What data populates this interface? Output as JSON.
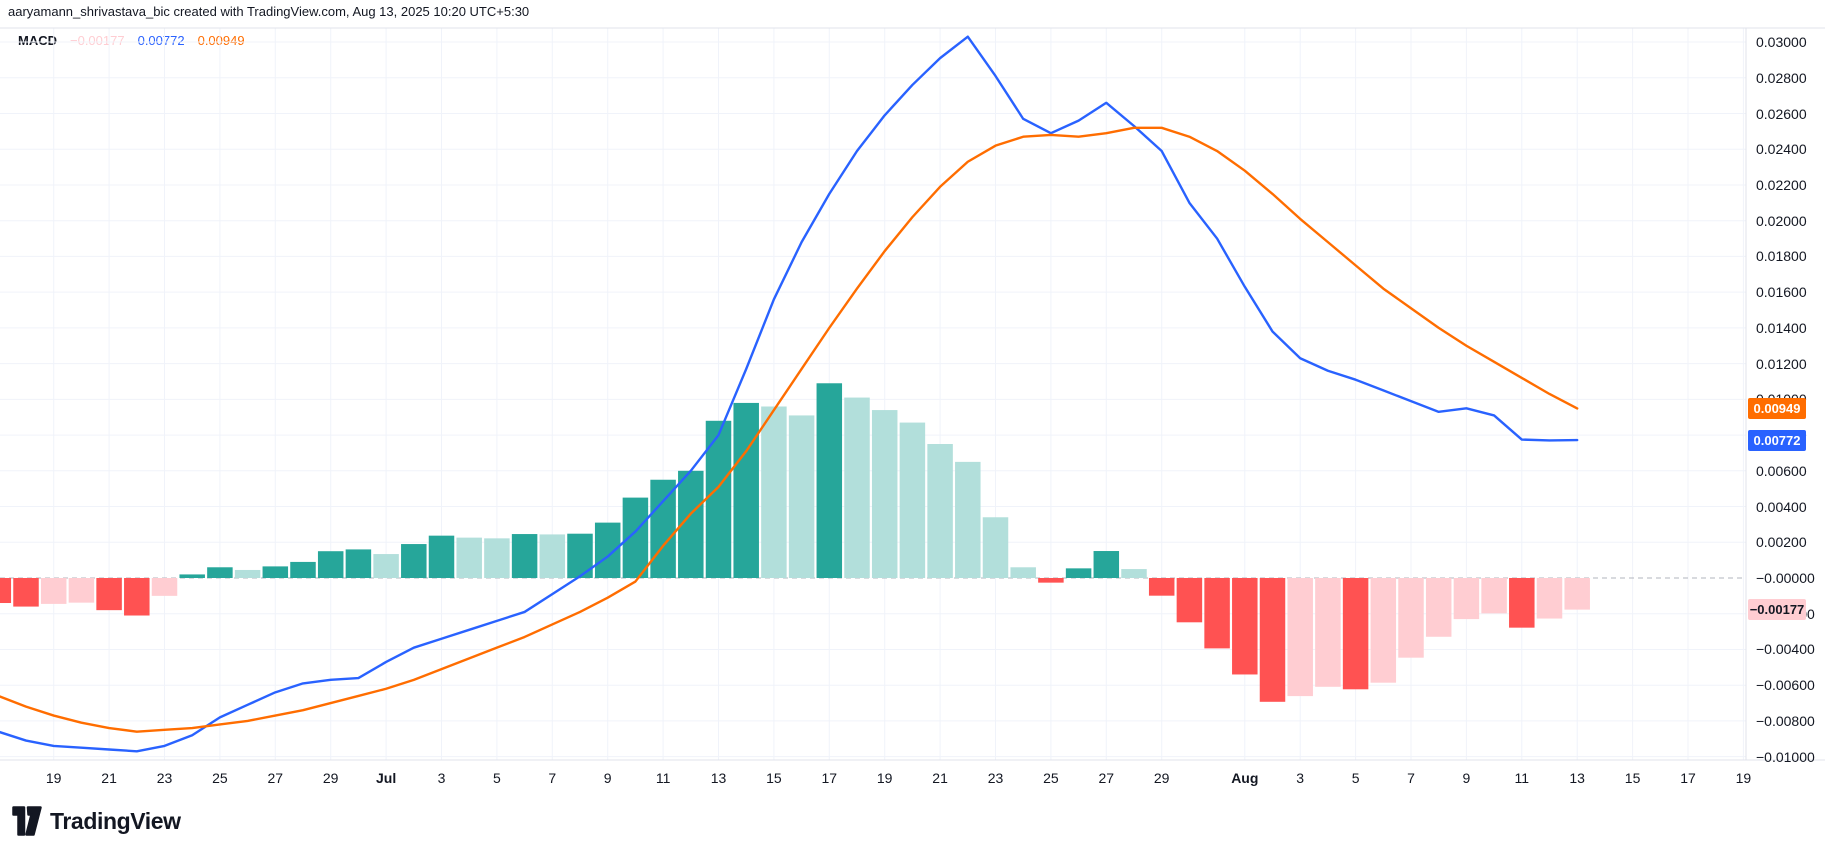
{
  "attribution": "aaryamann_shrivastava_bic created with TradingView.com, Aug 13, 2025 10:20 UTC+5:30",
  "legend": {
    "indicator": "MACD",
    "histogram_value": "−0.00177",
    "macd_value": "0.00772",
    "signal_value": "0.00949"
  },
  "logo": {
    "text": "TradingView"
  },
  "palette": {
    "background": "#ffffff",
    "grid": "#f0f3fa",
    "pane_border": "#e0e3eb",
    "zero_line": "#b2b5be",
    "text": "#131722",
    "macd_line": "#2962ff",
    "signal_line": "#ff6d00",
    "hist_rising_above": "#26a69a",
    "hist_falling_above": "#b2dfdb",
    "hist_falling_below": "#ff5252",
    "hist_rising_below": "#ffcdd2"
  },
  "badges": [
    {
      "name": "signal",
      "label": "0.00949",
      "value": 0.00949,
      "bg": "#ff6d00",
      "fg": "#ffffff"
    },
    {
      "name": "macd",
      "label": "0.00772",
      "value": 0.00772,
      "bg": "#2962ff",
      "fg": "#ffffff"
    },
    {
      "name": "histogram",
      "label": "−0.00177",
      "value": -0.00177,
      "bg": "#ffcdd2",
      "fg": "#131722"
    }
  ],
  "axis": {
    "price_ticks": [
      {
        "label": "0.03000",
        "value": 0.03
      },
      {
        "label": "0.02800",
        "value": 0.028
      },
      {
        "label": "0.02600",
        "value": 0.026
      },
      {
        "label": "0.02400",
        "value": 0.024
      },
      {
        "label": "0.02200",
        "value": 0.022
      },
      {
        "label": "0.02000",
        "value": 0.02
      },
      {
        "label": "0.01800",
        "value": 0.018
      },
      {
        "label": "0.01600",
        "value": 0.016
      },
      {
        "label": "0.01400",
        "value": 0.014
      },
      {
        "label": "0.01200",
        "value": 0.012
      },
      {
        "label": "0.01000",
        "value": 0.01
      },
      {
        "label": "0.00800",
        "value": 0.008
      },
      {
        "label": "0.00600",
        "value": 0.006
      },
      {
        "label": "0.00400",
        "value": 0.004
      },
      {
        "label": "0.00200",
        "value": 0.002
      },
      {
        "label": "−0.00000",
        "value": 0.0
      },
      {
        "label": "−0.00200",
        "value": -0.002
      },
      {
        "label": "−0.00400",
        "value": -0.004
      },
      {
        "label": "−0.00600",
        "value": -0.006
      },
      {
        "label": "−0.00800",
        "value": -0.008
      },
      {
        "label": "−0.01000",
        "value": -0.01
      }
    ],
    "time_ticks": [
      {
        "label": "19",
        "index": 2
      },
      {
        "label": "21",
        "index": 4
      },
      {
        "label": "23",
        "index": 6
      },
      {
        "label": "25",
        "index": 8
      },
      {
        "label": "27",
        "index": 10
      },
      {
        "label": "29",
        "index": 12
      },
      {
        "label": "Jul",
        "index": 14,
        "month": true
      },
      {
        "label": "3",
        "index": 16
      },
      {
        "label": "5",
        "index": 18
      },
      {
        "label": "7",
        "index": 20
      },
      {
        "label": "9",
        "index": 22
      },
      {
        "label": "11",
        "index": 24
      },
      {
        "label": "13",
        "index": 26
      },
      {
        "label": "15",
        "index": 28
      },
      {
        "label": "17",
        "index": 30
      },
      {
        "label": "19",
        "index": 32
      },
      {
        "label": "21",
        "index": 34
      },
      {
        "label": "23",
        "index": 36
      },
      {
        "label": "25",
        "index": 38
      },
      {
        "label": "27",
        "index": 40
      },
      {
        "label": "29",
        "index": 42
      },
      {
        "label": "Aug",
        "index": 45,
        "month": true
      },
      {
        "label": "3",
        "index": 47
      },
      {
        "label": "5",
        "index": 49
      },
      {
        "label": "7",
        "index": 51
      },
      {
        "label": "9",
        "index": 53
      },
      {
        "label": "11",
        "index": 55
      },
      {
        "label": "13",
        "index": 57
      },
      {
        "label": "15",
        "index": 59
      },
      {
        "label": "17",
        "index": 61
      },
      {
        "label": "19",
        "index": 63
      }
    ]
  },
  "chart_data": {
    "type": "bar",
    "subtype": "macd_indicator_panel",
    "title": "MACD",
    "xlabel": "date",
    "ylabel": "MACD value",
    "ylim": [
      -0.01,
      0.03
    ],
    "grid": true,
    "legend_position": "top-left",
    "dates": [
      "Jun 17",
      "Jun 18",
      "Jun 19",
      "Jun 20",
      "Jun 21",
      "Jun 22",
      "Jun 23",
      "Jun 24",
      "Jun 25",
      "Jun 26",
      "Jun 27",
      "Jun 28",
      "Jun 29",
      "Jun 30",
      "Jul 1",
      "Jul 2",
      "Jul 3",
      "Jul 4",
      "Jul 5",
      "Jul 6",
      "Jul 7",
      "Jul 8",
      "Jul 9",
      "Jul 10",
      "Jul 11",
      "Jul 12",
      "Jul 13",
      "Jul 14",
      "Jul 15",
      "Jul 16",
      "Jul 17",
      "Jul 18",
      "Jul 19",
      "Jul 20",
      "Jul 21",
      "Jul 22",
      "Jul 23",
      "Jul 24",
      "Jul 25",
      "Jul 26",
      "Jul 27",
      "Jul 28",
      "Jul 29",
      "Jul 30",
      "Jul 31",
      "Aug 1",
      "Aug 2",
      "Aug 3",
      "Aug 4",
      "Aug 5",
      "Aug 6",
      "Aug 7",
      "Aug 8",
      "Aug 9",
      "Aug 10",
      "Aug 11",
      "Aug 12",
      "Aug 13"
    ],
    "histogram": [
      -0.0014,
      -0.0016,
      -0.00145,
      -0.00138,
      -0.0018,
      -0.0021,
      -0.001,
      0.0002,
      0.0006,
      0.00045,
      0.00065,
      0.0009,
      0.0015,
      0.0016,
      0.00134,
      0.0019,
      0.00237,
      0.00226,
      0.00222,
      0.00246,
      0.00244,
      0.00248,
      0.0031,
      0.0045,
      0.0055,
      0.006,
      0.0088,
      0.0098,
      0.0096,
      0.0091,
      0.0109,
      0.0101,
      0.0094,
      0.0087,
      0.0075,
      0.0065,
      0.0034,
      0.0006,
      -0.00026,
      0.00054,
      0.00151,
      0.0005,
      -0.00099,
      -0.00248,
      -0.00394,
      -0.0054,
      -0.00693,
      -0.00661,
      -0.00609,
      -0.00623,
      -0.00586,
      -0.00446,
      -0.00329,
      -0.0023,
      -0.00198,
      -0.00278,
      -0.00227,
      -0.00177
    ],
    "series": [
      {
        "name": "MACD line",
        "color": "#2962ff",
        "values": [
          -0.0086,
          -0.0091,
          -0.0094,
          -0.0095,
          -0.0096,
          -0.0097,
          -0.0094,
          -0.0088,
          -0.0078,
          -0.0071,
          -0.0064,
          -0.0059,
          -0.0057,
          -0.0056,
          -0.0047,
          -0.0039,
          -0.0034,
          -0.0029,
          -0.0024,
          -0.0019,
          -0.0009,
          0.0001,
          0.0012,
          0.0026,
          0.0043,
          0.006,
          0.008,
          0.0117,
          0.0156,
          0.0188,
          0.0215,
          0.0239,
          0.0259,
          0.0276,
          0.0291,
          0.0303,
          0.0281,
          0.0257,
          0.0249,
          0.0256,
          0.0266,
          0.0253,
          0.0239,
          0.021,
          0.019,
          0.0163,
          0.0138,
          0.0123,
          0.0116,
          0.0111,
          0.0105,
          0.0099,
          0.0093,
          0.0095,
          0.0091,
          0.00775,
          0.0077,
          0.00772
        ]
      },
      {
        "name": "Signal line",
        "color": "#ff6d00",
        "values": [
          -0.0066,
          -0.0072,
          -0.0077,
          -0.0081,
          -0.0084,
          -0.0086,
          -0.0085,
          -0.0084,
          -0.0082,
          -0.008,
          -0.0077,
          -0.0074,
          -0.007,
          -0.0066,
          -0.0062,
          -0.0057,
          -0.0051,
          -0.0045,
          -0.0039,
          -0.0033,
          -0.0026,
          -0.0019,
          -0.0011,
          -0.0002,
          0.0018,
          0.0036,
          0.0051,
          0.0071,
          0.0094,
          0.0117,
          0.014,
          0.0162,
          0.0183,
          0.0202,
          0.0219,
          0.0233,
          0.0242,
          0.0247,
          0.0248,
          0.0247,
          0.0249,
          0.0252,
          0.0252,
          0.0247,
          0.0239,
          0.0228,
          0.0215,
          0.0201,
          0.0188,
          0.0175,
          0.0162,
          0.0151,
          0.014,
          0.013,
          0.0121,
          0.0112,
          0.0103,
          0.00949
        ]
      }
    ],
    "last_values": {
      "histogram": -0.00177,
      "macd": 0.00772,
      "signal": 0.00949
    }
  }
}
